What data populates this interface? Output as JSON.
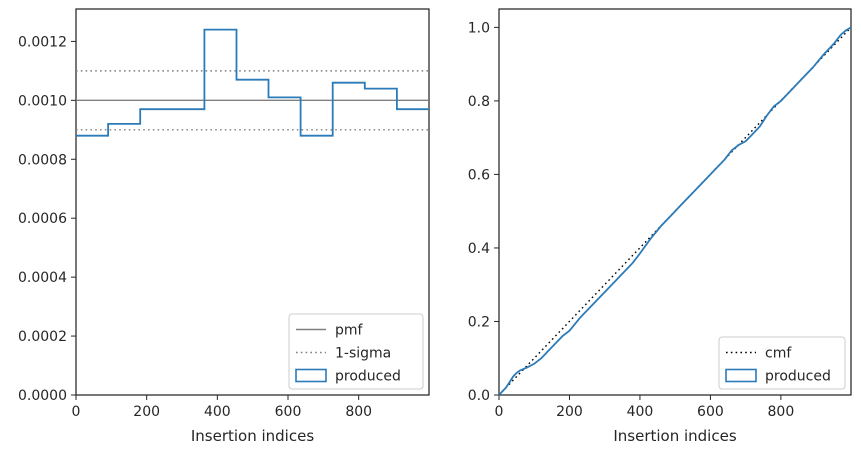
{
  "chart_data": [
    {
      "type": "histogram",
      "title": "",
      "xlabel": "Insertion indices",
      "ylabel": "",
      "xlim": [
        0,
        999
      ],
      "ylim": [
        0,
        0.00131
      ],
      "xticks": [
        0,
        200,
        400,
        600,
        800
      ],
      "xtick_labels": [
        "0",
        "200",
        "400",
        "600",
        "800"
      ],
      "yticks": [
        0,
        0.0002,
        0.0004,
        0.0006,
        0.0008,
        0.001,
        0.0012
      ],
      "ytick_labels": [
        "0.0000",
        "0.0002",
        "0.0004",
        "0.0006",
        "0.0008",
        "0.0010",
        "0.0012"
      ],
      "grid": false,
      "legend_position": "lower-right",
      "reference_lines": [
        {
          "name": "pmf",
          "y": 0.001,
          "style": "solid",
          "color": "#808080"
        },
        {
          "name": "1-sigma",
          "y": 0.0011,
          "style": "dotted",
          "color": "#808080"
        },
        {
          "name": "1-sigma",
          "y": 0.0009,
          "style": "dotted",
          "color": "#808080"
        }
      ],
      "series": [
        {
          "name": "produced",
          "style": "step",
          "color": "#2b7bb9",
          "bin_edges": [
            0,
            90.8,
            181.6,
            272.5,
            363.3,
            454.1,
            544.9,
            635.7,
            726.5,
            817.4,
            908.2,
            999
          ],
          "values": [
            0.00088,
            0.00092,
            0.00097,
            0.00097,
            0.00124,
            0.00107,
            0.00101,
            0.00088,
            0.00106,
            0.00104,
            0.00097
          ]
        }
      ],
      "legend": [
        "pmf",
        "1-sigma",
        "produced"
      ]
    },
    {
      "type": "line",
      "title": "",
      "xlabel": "Insertion indices",
      "ylabel": "",
      "xlim": [
        0,
        999
      ],
      "ylim": [
        0,
        1.05
      ],
      "xticks": [
        0,
        200,
        400,
        600,
        800
      ],
      "xtick_labels": [
        "0",
        "200",
        "400",
        "600",
        "800"
      ],
      "yticks": [
        0,
        0.2,
        0.4,
        0.6,
        0.8,
        1.0
      ],
      "ytick_labels": [
        "0.0",
        "0.2",
        "0.4",
        "0.6",
        "0.8",
        "1.0"
      ],
      "grid": false,
      "legend_position": "lower-right",
      "series": [
        {
          "name": "cmf",
          "style": "dotted",
          "color": "#000000",
          "x": [
            0,
            999
          ],
          "y": [
            0,
            1
          ]
        },
        {
          "name": "produced",
          "style": "solid",
          "color": "#2b7bb9",
          "x": [
            0,
            10,
            20,
            30,
            40,
            50,
            60,
            80,
            100,
            120,
            140,
            160,
            180,
            200,
            230,
            260,
            290,
            320,
            350,
            380,
            400,
            430,
            460,
            490,
            520,
            550,
            580,
            610,
            640,
            660,
            680,
            700,
            720,
            740,
            760,
            780,
            800,
            830,
            860,
            890,
            920,
            950,
            970,
            985,
            999
          ],
          "y": [
            0,
            0.01,
            0.02,
            0.035,
            0.05,
            0.06,
            0.067,
            0.075,
            0.085,
            0.1,
            0.12,
            0.14,
            0.16,
            0.175,
            0.21,
            0.24,
            0.27,
            0.3,
            0.33,
            0.36,
            0.385,
            0.425,
            0.46,
            0.49,
            0.52,
            0.55,
            0.58,
            0.61,
            0.64,
            0.665,
            0.68,
            0.69,
            0.71,
            0.73,
            0.76,
            0.785,
            0.8,
            0.83,
            0.86,
            0.89,
            0.925,
            0.955,
            0.98,
            0.992,
            1.0
          ]
        }
      ],
      "legend": [
        "cmf",
        "produced"
      ]
    }
  ]
}
